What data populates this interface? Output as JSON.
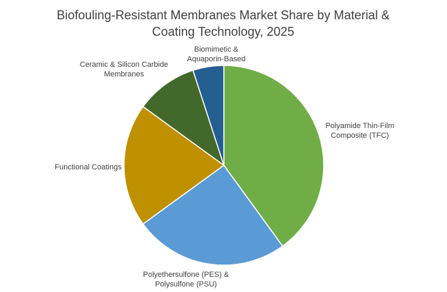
{
  "chart_data": {
    "type": "pie",
    "title": "Biofouling-Resistant Membranes Market Share by Material & Coating Technology, 2025",
    "categories": [
      "Polyamide Thin-Film Composite (TFC)",
      "Polyethersulfone (PES) & Polysulfone (PSU)",
      "Functional Coatings",
      "Ceramic & Silicon Carbide Membranes",
      "Biomimetic & Aquaporin-Based"
    ],
    "values": [
      40,
      25,
      20,
      10,
      5
    ],
    "colors": [
      "#70ad47",
      "#5b9bd5",
      "#bf9000",
      "#43682b",
      "#255e91"
    ]
  }
}
